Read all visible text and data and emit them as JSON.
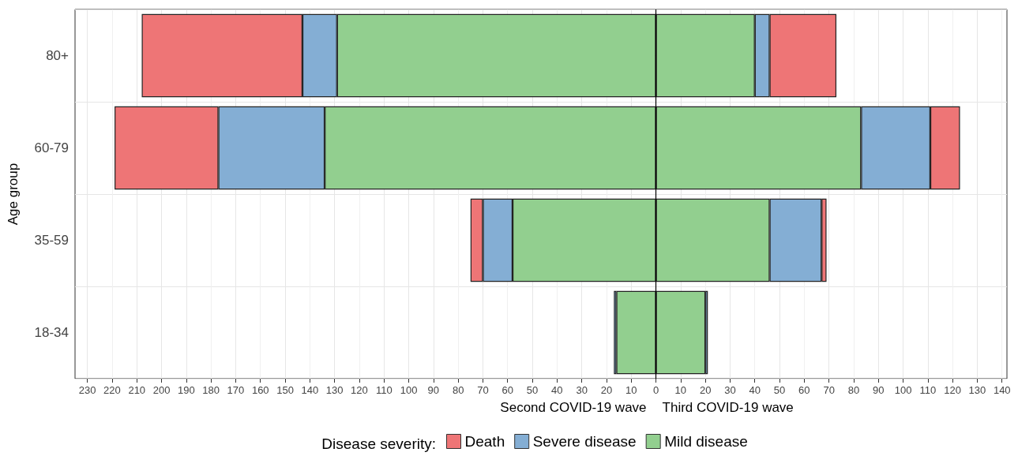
{
  "chart_data": {
    "type": "bar",
    "orientation": "horizontal",
    "stacked": true,
    "ylabel": "Age group",
    "legend_title": "Disease severity:",
    "annotations": [
      "Second COVID-19 wave",
      "Third COVID-19 wave"
    ],
    "categories": [
      "80+",
      "60-79",
      "35-59",
      "18-34"
    ],
    "series": [
      {
        "name": "Mild disease",
        "color": "#92cf8f",
        "values": [
          -129,
          -134,
          -58,
          -16
        ]
      },
      {
        "name": "Severe disease",
        "color": "#84aed4",
        "values": [
          -14,
          -43,
          -12,
          -1
        ]
      },
      {
        "name": "Death",
        "color": "#ee7576",
        "values": [
          -65,
          -42,
          -5,
          null
        ]
      },
      {
        "name": null,
        "color": "#92cf8f",
        "values": [
          40,
          83,
          46,
          20
        ]
      },
      {
        "name": null,
        "color": "#84aed4",
        "values": [
          6,
          28,
          21,
          1
        ]
      },
      {
        "name": null,
        "color": "#ee7576",
        "values": [
          27,
          12,
          2,
          null
        ]
      }
    ],
    "xlim": [
      -235,
      142
    ],
    "xticks": [
      {
        "value": -230,
        "label": "230"
      },
      {
        "value": -220,
        "label": "220"
      },
      {
        "value": -210,
        "label": "210"
      },
      {
        "value": -200,
        "label": "200"
      },
      {
        "value": -190,
        "label": "190"
      },
      {
        "value": -180,
        "label": "180"
      },
      {
        "value": -170,
        "label": "170"
      },
      {
        "value": -160,
        "label": "160"
      },
      {
        "value": -150,
        "label": "150"
      },
      {
        "value": -140,
        "label": "140"
      },
      {
        "value": -130,
        "label": "130"
      },
      {
        "value": -120,
        "label": "120"
      },
      {
        "value": -110,
        "label": "110"
      },
      {
        "value": -100,
        "label": "100"
      },
      {
        "value": -90,
        "label": "90"
      },
      {
        "value": -80,
        "label": "80"
      },
      {
        "value": -70,
        "label": "70"
      },
      {
        "value": -60,
        "label": "60"
      },
      {
        "value": -50,
        "label": "50"
      },
      {
        "value": -40,
        "label": "40"
      },
      {
        "value": -30,
        "label": "30"
      },
      {
        "value": -20,
        "label": "20"
      },
      {
        "value": -10,
        "label": "10"
      },
      0,
      10,
      20,
      30,
      40,
      50,
      60,
      70,
      80,
      90,
      100,
      110,
      120,
      130,
      140
    ],
    "ref_lines": [
      {
        "axis": "x",
        "value": 0,
        "color": "#000000"
      }
    ],
    "grid": true,
    "legend": "bottom"
  }
}
